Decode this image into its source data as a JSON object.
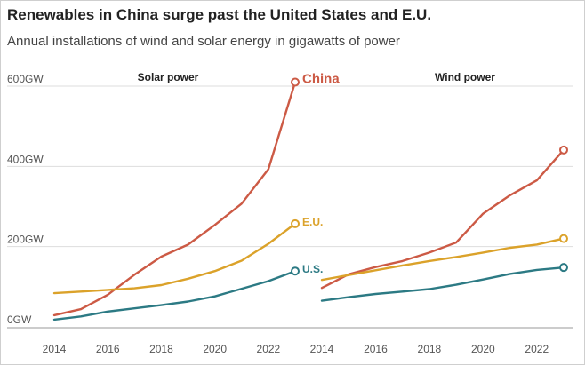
{
  "title": "Renewables in China surge past the United States and E.U.",
  "subtitle": "Annual installations of wind and solar energy in gigawatts of power",
  "colors": {
    "China": "#cc5a45",
    "E.U.": "#dba22a",
    "U.S.": "#2c7a84",
    "grid": "#dddddd",
    "baseline": "#999999"
  },
  "chart_data": [
    {
      "type": "line",
      "title": "Solar power",
      "x": [
        2014,
        2015,
        2016,
        2017,
        2018,
        2019,
        2020,
        2021,
        2022,
        2023
      ],
      "ylim": [
        0,
        600
      ],
      "y_ticks": [
        0,
        200,
        400,
        600
      ],
      "y_tick_labels": [
        "0GW",
        "200GW",
        "400GW",
        "600GW"
      ],
      "x_ticks": [
        2014,
        2016,
        2018,
        2020,
        2022
      ],
      "x_tick_labels": [
        "2014",
        "2016",
        "2018",
        "2020",
        "2022"
      ],
      "series": [
        {
          "name": "China",
          "label": "China",
          "values": [
            29,
            44,
            80,
            130,
            175,
            205,
            254,
            307,
            393,
            610
          ]
        },
        {
          "name": "E.U.",
          "label": "E.U.",
          "values": [
            84,
            88,
            92,
            96,
            104,
            120,
            139,
            165,
            207,
            257
          ]
        },
        {
          "name": "U.S.",
          "label": "U.S.",
          "values": [
            18,
            26,
            38,
            46,
            54,
            63,
            76,
            95,
            114,
            139
          ]
        }
      ]
    },
    {
      "type": "line",
      "title": "Wind power",
      "x": [
        2014,
        2015,
        2016,
        2017,
        2018,
        2019,
        2020,
        2021,
        2022,
        2023
      ],
      "ylim": [
        0,
        600
      ],
      "y_ticks": [
        0,
        200,
        400,
        600
      ],
      "x_ticks": [
        2014,
        2016,
        2018,
        2020,
        2022
      ],
      "x_tick_labels": [
        "2014",
        "2016",
        "2018",
        "2020",
        "2022"
      ],
      "series": [
        {
          "name": "China",
          "values": [
            97,
            131,
            149,
            164,
            185,
            210,
            282,
            328,
            365,
            441
          ]
        },
        {
          "name": "E.U.",
          "values": [
            117,
            129,
            141,
            153,
            164,
            174,
            185,
            197,
            205,
            220
          ]
        },
        {
          "name": "U.S.",
          "values": [
            65,
            74,
            82,
            88,
            94,
            105,
            118,
            132,
            142,
            148
          ]
        }
      ]
    }
  ]
}
